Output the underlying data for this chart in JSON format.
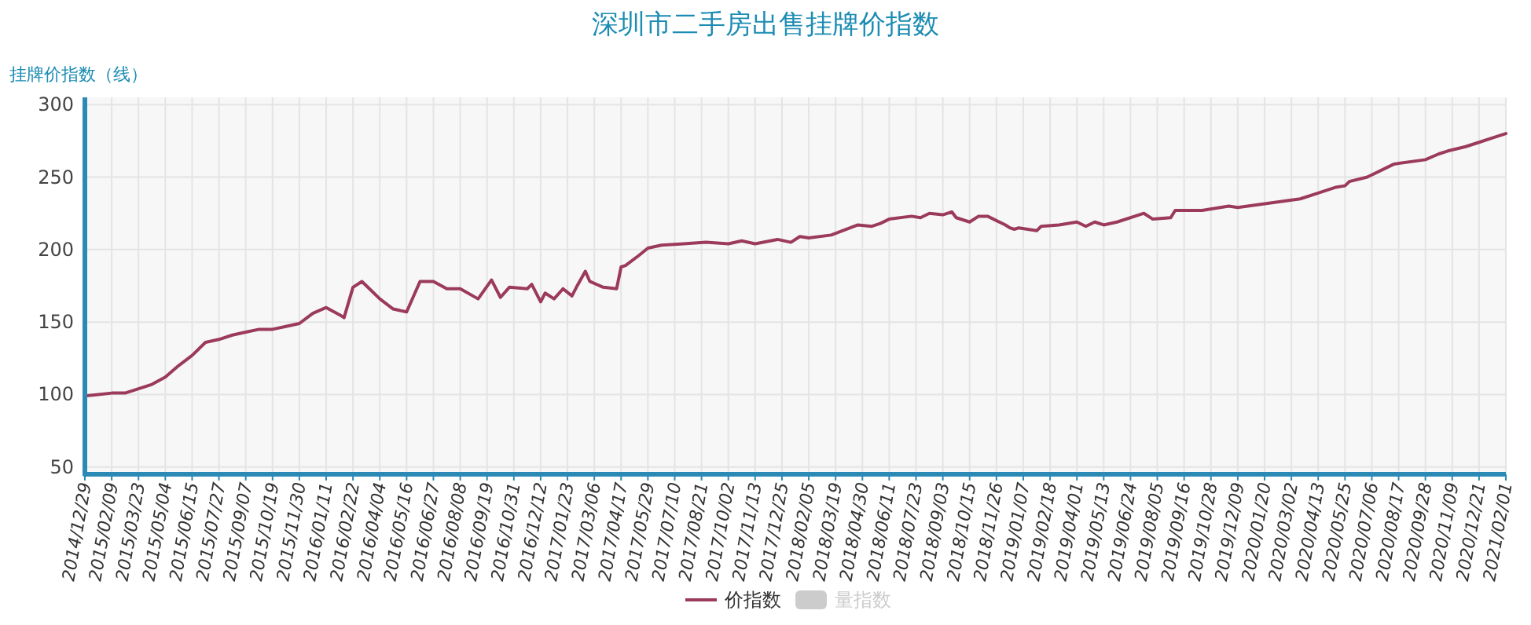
{
  "chart_data": {
    "type": "line",
    "title": "深圳市二手房出售挂牌价指数",
    "ylabel": "挂牌价指数（线）",
    "xlim": [
      "2014-12-29",
      "2021-02-01"
    ],
    "ylim": [
      45,
      305
    ],
    "yticks": [
      50,
      100,
      150,
      200,
      250,
      300
    ],
    "xticks": [
      {
        "value": "2014-12-29",
        "label": "2014/12/29"
      },
      {
        "value": "2015-02-09",
        "label": "2015/02/09"
      },
      {
        "value": "2015-03-23",
        "label": "2015/03/23"
      },
      {
        "value": "2015-05-04",
        "label": "2015/05/04"
      },
      {
        "value": "2015-06-15",
        "label": "2015/06/15"
      },
      {
        "value": "2015-07-27",
        "label": "2015/07/27"
      },
      {
        "value": "2015-09-07",
        "label": "2015/09/07"
      },
      {
        "value": "2015-10-19",
        "label": "2015/10/19"
      },
      {
        "value": "2015-11-30",
        "label": "2015/11/30"
      },
      {
        "value": "2016-01-11",
        "label": "2016/01/11"
      },
      {
        "value": "2016-02-22",
        "label": "2016/02/22"
      },
      {
        "value": "2016-04-04",
        "label": "2016/04/04"
      },
      {
        "value": "2016-05-16",
        "label": "2016/05/16"
      },
      {
        "value": "2016-06-27",
        "label": "2016/06/27"
      },
      {
        "value": "2016-08-08",
        "label": "2016/08/08"
      },
      {
        "value": "2016-09-19",
        "label": "2016/09/19"
      },
      {
        "value": "2016-10-31",
        "label": "2016/10/31"
      },
      {
        "value": "2016-12-12",
        "label": "2016/12/12"
      },
      {
        "value": "2017-01-23",
        "label": "2017/01/23"
      },
      {
        "value": "2017-03-06",
        "label": "2017/03/06"
      },
      {
        "value": "2017-04-17",
        "label": "2017/04/17"
      },
      {
        "value": "2017-05-29",
        "label": "2017/05/29"
      },
      {
        "value": "2017-07-10",
        "label": "2017/07/10"
      },
      {
        "value": "2017-08-21",
        "label": "2017/08/21"
      },
      {
        "value": "2017-10-02",
        "label": "2017/10/02"
      },
      {
        "value": "2017-11-13",
        "label": "2017/11/13"
      },
      {
        "value": "2017-12-25",
        "label": "2017/12/25"
      },
      {
        "value": "2018-02-05",
        "label": "2018/02/05"
      },
      {
        "value": "2018-03-19",
        "label": "2018/03/19"
      },
      {
        "value": "2018-04-30",
        "label": "2018/04/30"
      },
      {
        "value": "2018-06-11",
        "label": "2018/06/11"
      },
      {
        "value": "2018-07-23",
        "label": "2018/07/23"
      },
      {
        "value": "2018-09-03",
        "label": "2018/09/03"
      },
      {
        "value": "2018-10-15",
        "label": "2018/10/15"
      },
      {
        "value": "2018-11-26",
        "label": "2018/11/26"
      },
      {
        "value": "2019-01-07",
        "label": "2019/01/07"
      },
      {
        "value": "2019-02-18",
        "label": "2019/02/18"
      },
      {
        "value": "2019-04-01",
        "label": "2019/04/01"
      },
      {
        "value": "2019-05-13",
        "label": "2019/05/13"
      },
      {
        "value": "2019-06-24",
        "label": "2019/06/24"
      },
      {
        "value": "2019-08-05",
        "label": "2019/08/05"
      },
      {
        "value": "2019-09-16",
        "label": "2019/09/16"
      },
      {
        "value": "2019-10-28",
        "label": "2019/10/28"
      },
      {
        "value": "2019-12-09",
        "label": "2019/12/09"
      },
      {
        "value": "2020-01-20",
        "label": "2020/01/20"
      },
      {
        "value": "2020-03-02",
        "label": "2020/03/02"
      },
      {
        "value": "2020-04-13",
        "label": "2020/04/13"
      },
      {
        "value": "2020-05-25",
        "label": "2020/05/25"
      },
      {
        "value": "2020-07-06",
        "label": "2020/07/06"
      },
      {
        "value": "2020-08-17",
        "label": "2020/08/17"
      },
      {
        "value": "2020-09-28",
        "label": "2020/09/28"
      },
      {
        "value": "2020-11-09",
        "label": "2020/11/09"
      },
      {
        "value": "2020-12-21",
        "label": "2020/12/21"
      },
      {
        "value": "2021-02-01",
        "label": "2021/02/01"
      }
    ],
    "x": [
      "2014-12-29",
      "2015-01-19",
      "2015-02-09",
      "2015-03-02",
      "2015-03-23",
      "2015-04-13",
      "2015-05-04",
      "2015-05-25",
      "2015-06-15",
      "2015-07-06",
      "2015-07-27",
      "2015-08-17",
      "2015-09-07",
      "2015-09-28",
      "2015-10-19",
      "2015-11-09",
      "2015-11-30",
      "2015-12-21",
      "2016-01-11",
      "2016-02-01",
      "2016-02-08",
      "2016-02-22",
      "2016-03-07",
      "2016-03-14",
      "2016-04-04",
      "2016-04-25",
      "2016-05-16",
      "2016-06-06",
      "2016-06-27",
      "2016-07-18",
      "2016-08-08",
      "2016-09-05",
      "2016-09-26",
      "2016-10-10",
      "2016-10-24",
      "2016-11-21",
      "2016-11-28",
      "2016-12-12",
      "2016-12-19",
      "2017-01-02",
      "2017-01-16",
      "2017-01-30",
      "2017-02-06",
      "2017-02-20",
      "2017-02-27",
      "2017-03-20",
      "2017-04-10",
      "2017-04-17",
      "2017-04-24",
      "2017-05-15",
      "2017-05-29",
      "2017-06-19",
      "2017-07-24",
      "2017-08-28",
      "2017-10-02",
      "2017-10-23",
      "2017-11-13",
      "2017-12-18",
      "2018-01-08",
      "2018-01-22",
      "2018-02-05",
      "2018-03-12",
      "2018-04-23",
      "2018-05-14",
      "2018-05-28",
      "2018-06-11",
      "2018-07-16",
      "2018-07-30",
      "2018-08-13",
      "2018-09-03",
      "2018-09-17",
      "2018-09-24",
      "2018-10-15",
      "2018-10-29",
      "2018-11-12",
      "2018-12-10",
      "2018-12-17",
      "2018-12-24",
      "2018-12-31",
      "2019-01-28",
      "2019-02-04",
      "2019-03-04",
      "2019-04-01",
      "2019-04-15",
      "2019-04-29",
      "2019-05-13",
      "2019-06-03",
      "2019-07-15",
      "2019-07-29",
      "2019-08-26",
      "2019-09-02",
      "2019-10-14",
      "2019-11-25",
      "2019-12-09",
      "2020-01-27",
      "2020-03-16",
      "2020-04-13",
      "2020-05-11",
      "2020-05-25",
      "2020-06-01",
      "2020-06-29",
      "2020-08-10",
      "2020-09-28",
      "2020-10-19",
      "2020-11-02",
      "2020-11-30",
      "2020-12-21",
      "2021-01-11",
      "2021-02-01"
    ],
    "series": [
      {
        "name": "价指数",
        "color": "#9b3a5c",
        "values": [
          99,
          100,
          101,
          101,
          104,
          107,
          112,
          120,
          127,
          136,
          138,
          141,
          143,
          145,
          145,
          147,
          149,
          156,
          160,
          155,
          153,
          174,
          178,
          175,
          166,
          159,
          157,
          178,
          178,
          173,
          173,
          166,
          179,
          167,
          174,
          173,
          176,
          164,
          170,
          166,
          173,
          168,
          174,
          185,
          178,
          174,
          173,
          188,
          189,
          196,
          201,
          203,
          204,
          205,
          204,
          206,
          204,
          207,
          205,
          209,
          208,
          210,
          217,
          216,
          218,
          221,
          223,
          222,
          225,
          224,
          226,
          222,
          219,
          223,
          223,
          217,
          215,
          214,
          215,
          213,
          216,
          217,
          219,
          216,
          219,
          217,
          219,
          225,
          221,
          222,
          227,
          227,
          230,
          229,
          232,
          235,
          239,
          243,
          244,
          247,
          250,
          259,
          262,
          266,
          268,
          271,
          274,
          277,
          280
        ]
      },
      {
        "name": "量指数",
        "color": "#cccccc",
        "values": [
          null,
          null,
          null,
          null,
          null,
          null,
          null,
          null,
          null,
          null,
          null,
          null,
          null,
          null,
          null,
          null,
          null,
          null,
          null,
          null,
          null,
          null,
          null,
          null,
          null,
          null,
          null,
          null,
          null,
          null,
          null,
          null,
          null,
          null,
          null,
          null,
          null,
          null,
          null,
          null,
          null,
          null,
          null,
          null,
          null,
          null,
          null,
          null,
          null,
          null,
          null,
          null,
          null,
          null,
          null,
          null,
          null,
          null,
          null,
          null,
          null,
          null,
          null,
          null,
          null,
          null,
          null,
          null,
          null,
          null,
          null,
          null,
          null,
          null,
          null,
          null,
          null,
          null,
          null,
          null,
          null,
          null,
          null,
          null,
          null,
          null,
          null,
          null,
          null,
          null,
          null,
          null,
          null,
          null,
          null,
          null,
          null,
          null,
          null,
          null,
          null,
          null,
          null,
          null,
          null,
          null,
          null,
          null,
          null
        ]
      }
    ],
    "grid": true,
    "legend": "bottom",
    "line_style": "solid",
    "marker": "none"
  }
}
